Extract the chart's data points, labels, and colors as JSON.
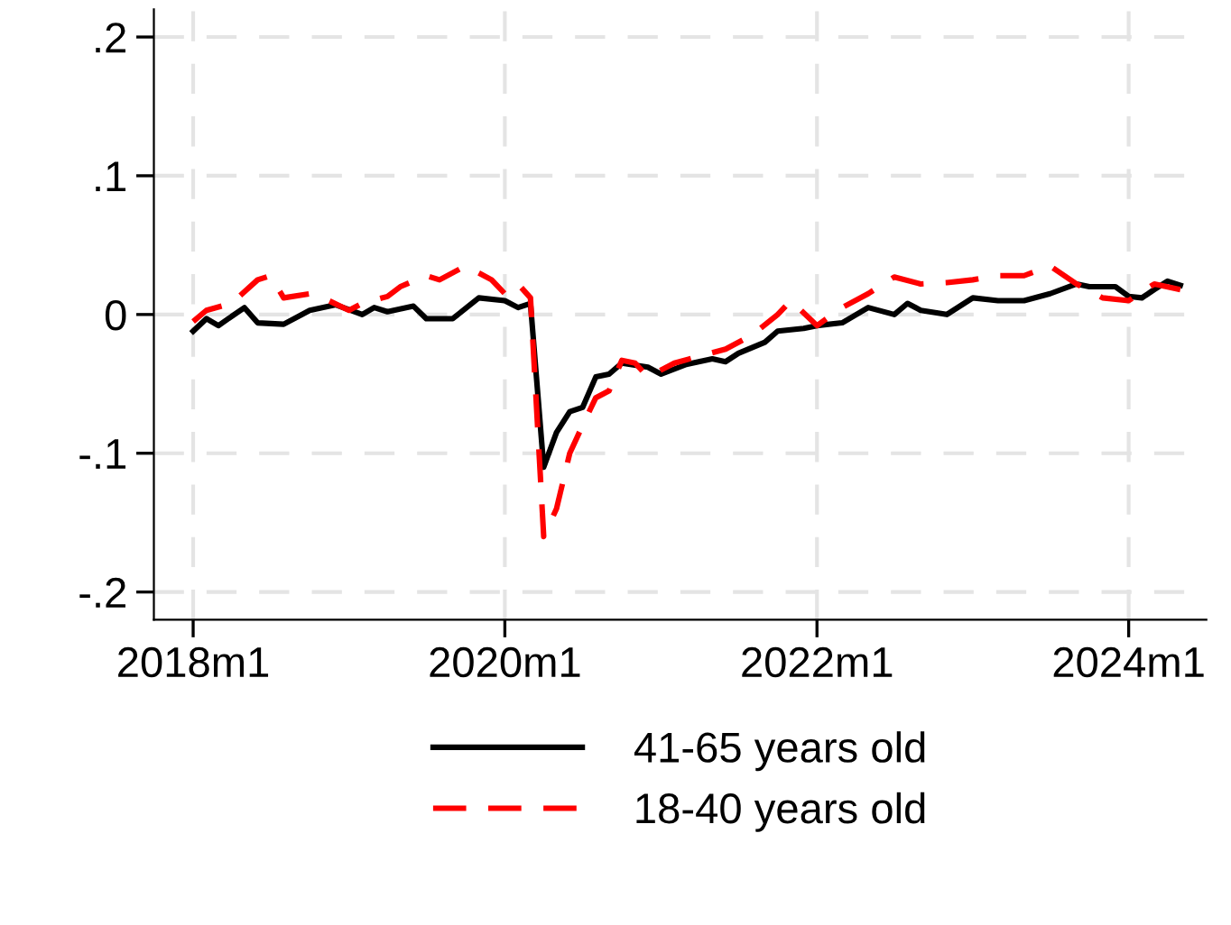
{
  "chart_data": {
    "type": "line",
    "series": [
      {
        "name": "41-65 years old",
        "color": "#000000",
        "line_style": "solid",
        "x": [
          "2018-01",
          "2018-02",
          "2018-03",
          "2018-05",
          "2018-06",
          "2018-08",
          "2018-10",
          "2018-12",
          "2019-02",
          "2019-03",
          "2019-04",
          "2019-06",
          "2019-07",
          "2019-09",
          "2019-11",
          "2020-01",
          "2020-02",
          "2020-03",
          "2020-04",
          "2020-05",
          "2020-06",
          "2020-07",
          "2020-08",
          "2020-09",
          "2020-10",
          "2020-12",
          "2021-01",
          "2021-03",
          "2021-05",
          "2021-06",
          "2021-07",
          "2021-09",
          "2021-10",
          "2021-12",
          "2022-01",
          "2022-03",
          "2022-05",
          "2022-07",
          "2022-08",
          "2022-09",
          "2022-11",
          "2023-01",
          "2023-03",
          "2023-05",
          "2023-07",
          "2023-09",
          "2023-10",
          "2023-12",
          "2024-01",
          "2024-02",
          "2024-03",
          "2024-04",
          "2024-05"
        ],
        "values": [
          -0.012,
          -0.003,
          -0.008,
          0.005,
          -0.006,
          -0.007,
          0.003,
          0.007,
          0.0,
          0.005,
          0.002,
          0.006,
          -0.003,
          -0.003,
          0.012,
          0.01,
          0.005,
          0.008,
          -0.11,
          -0.085,
          -0.07,
          -0.067,
          -0.045,
          -0.043,
          -0.035,
          -0.038,
          -0.043,
          -0.036,
          -0.032,
          -0.034,
          -0.028,
          -0.02,
          -0.012,
          -0.01,
          -0.008,
          -0.006,
          0.005,
          0.0,
          0.008,
          0.003,
          0.0,
          0.012,
          0.01,
          0.01,
          0.015,
          0.022,
          0.02,
          0.02,
          0.013,
          0.012,
          0.018,
          0.024,
          0.021
        ]
      },
      {
        "name": "18-40 years old",
        "color": "#ff0000",
        "line_style": "dashed",
        "x": [
          "2018-01",
          "2018-02",
          "2018-04",
          "2018-06",
          "2018-07",
          "2018-08",
          "2018-10",
          "2018-11",
          "2019-01",
          "2019-02",
          "2019-04",
          "2019-05",
          "2019-07",
          "2019-08",
          "2019-10",
          "2019-12",
          "2020-01",
          "2020-02",
          "2020-03",
          "2020-04",
          "2020-05",
          "2020-06",
          "2020-07",
          "2020-08",
          "2020-09",
          "2020-10",
          "2020-11",
          "2020-12",
          "2021-02",
          "2021-04",
          "2021-06",
          "2021-08",
          "2021-10",
          "2021-11",
          "2022-01",
          "2022-03",
          "2022-05",
          "2022-07",
          "2022-09",
          "2022-11",
          "2023-01",
          "2023-03",
          "2023-05",
          "2023-07",
          "2023-09",
          "2023-11",
          "2024-01",
          "2024-03",
          "2024-05"
        ],
        "values": [
          -0.005,
          0.003,
          0.008,
          0.025,
          0.028,
          0.012,
          0.015,
          0.012,
          0.003,
          0.008,
          0.013,
          0.02,
          0.028,
          0.025,
          0.035,
          0.025,
          0.015,
          0.022,
          0.012,
          -0.16,
          -0.14,
          -0.1,
          -0.08,
          -0.06,
          -0.055,
          -0.033,
          -0.035,
          -0.045,
          -0.035,
          -0.03,
          -0.025,
          -0.015,
          0.0,
          0.01,
          -0.008,
          0.005,
          0.015,
          0.027,
          0.022,
          0.023,
          0.025,
          0.028,
          0.028,
          0.035,
          0.022,
          0.012,
          0.01,
          0.022,
          0.018
        ]
      }
    ],
    "xlim": [
      "2017-10",
      "2024-07"
    ],
    "xticks": [
      {
        "value": "2018-01",
        "label": "2018m1"
      },
      {
        "value": "2020-01",
        "label": "2020m1"
      },
      {
        "value": "2022-01",
        "label": "2022m1"
      },
      {
        "value": "2024-01",
        "label": "2024m1"
      }
    ],
    "ylim": [
      -0.22,
      0.22
    ],
    "yticks": [
      {
        "value": -0.2,
        "label": "-.2"
      },
      {
        "value": -0.1,
        "label": "-.1"
      },
      {
        "value": 0,
        "label": "0"
      },
      {
        "value": 0.1,
        "label": ".1"
      },
      {
        "value": 0.2,
        "label": ".2"
      }
    ],
    "grid": true,
    "legend": "bottom"
  }
}
